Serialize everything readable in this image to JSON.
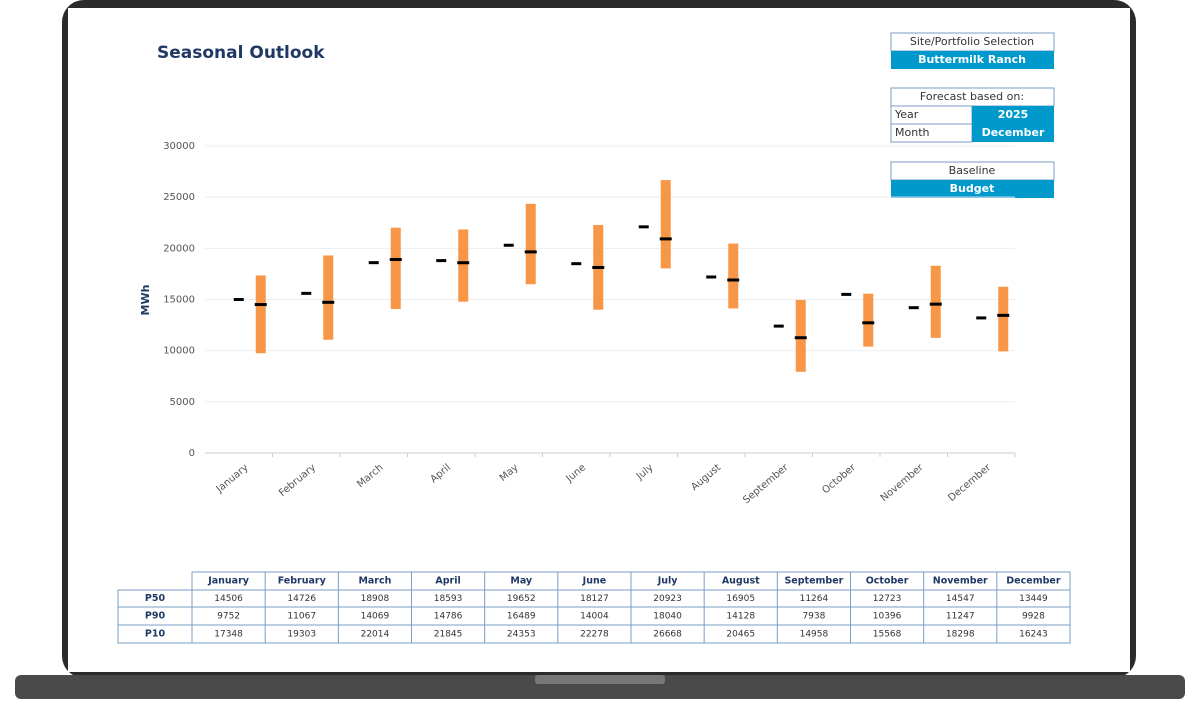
{
  "controls": {
    "site_label": "Site/Portfolio Selection",
    "site_value": "Buttermilk Ranch",
    "forecast_label": "Forecast based on:",
    "year_label": "Year",
    "year_value": "2025",
    "month_label": "Month",
    "month_value": "December",
    "baseline_label": "Baseline"
  },
  "chart_data": {
    "type": "range",
    "title": "Seasonal Outlook",
    "y_label": "MWh",
    "categories": [
      "January",
      "February",
      "March",
      "April",
      "May",
      "June",
      "July",
      "August",
      "September",
      "October",
      "November",
      "December"
    ],
    "series": [
      {
        "name": "P50",
        "color": "#000000",
        "values": [
          14506,
          14726,
          18908,
          18593,
          19652,
          18127,
          20923,
          16905,
          11264,
          12723,
          14547,
          13449
        ]
      },
      {
        "name": "P90",
        "color": "#f79646",
        "values": [
          9752,
          11067,
          14069,
          14786,
          16489,
          14004,
          18040,
          14128,
          7938,
          10396,
          11247,
          9928
        ]
      },
      {
        "name": "P10",
        "color": "#f79646",
        "values": [
          17348,
          19303,
          22014,
          21845,
          24353,
          22278,
          26668,
          20465,
          14958,
          15568,
          18298,
          16243
        ]
      },
      {
        "name": "Budget",
        "color": "#000000",
        "values": [
          15000,
          15600,
          18600,
          18800,
          20300,
          18500,
          22100,
          17200,
          12400,
          15500,
          14200,
          13200
        ]
      }
    ],
    "ylim": [
      0,
      30000
    ],
    "yticks": [
      0,
      5000,
      10000,
      15000,
      20000,
      25000,
      30000
    ],
    "grid": true
  }
}
